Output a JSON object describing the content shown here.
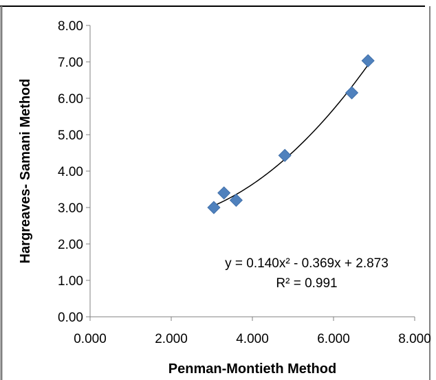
{
  "chart_data": {
    "type": "scatter",
    "xlabel": "Penman-Montieth Method",
    "ylabel": "Hargreaves- Samani Method",
    "xlim": [
      0,
      8
    ],
    "ylim": [
      0,
      8
    ],
    "x_ticks": [
      "0.000",
      "2.000",
      "4.000",
      "6.000",
      "8.000"
    ],
    "y_ticks": [
      "0.00",
      "1.00",
      "2.00",
      "3.00",
      "4.00",
      "5.00",
      "6.00",
      "7.00",
      "8.00"
    ],
    "grid": false,
    "series": [
      {
        "marker": "diamond",
        "color": "#4F81BD",
        "points": [
          {
            "x": 3.05,
            "y": 3.0
          },
          {
            "x": 3.3,
            "y": 3.4
          },
          {
            "x": 3.6,
            "y": 3.2
          },
          {
            "x": 4.8,
            "y": 4.43
          },
          {
            "x": 6.45,
            "y": 6.15
          },
          {
            "x": 6.85,
            "y": 7.03
          }
        ]
      }
    ],
    "trendline": {
      "type": "polynomial",
      "coefficients": [
        0.14,
        -0.369,
        2.873
      ],
      "x_range": [
        3.05,
        6.85
      ],
      "color": "#000000"
    },
    "annotations": {
      "equation": "y = 0.140x² - 0.369x + 2.873",
      "r_squared": "R² = 0.991"
    }
  }
}
